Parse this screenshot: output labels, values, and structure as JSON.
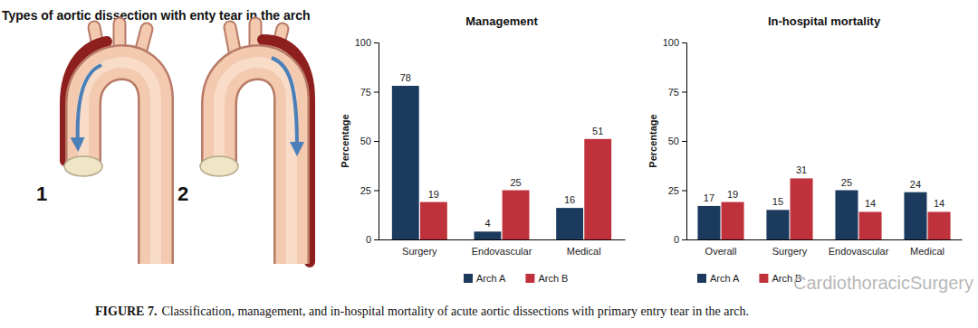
{
  "figure": {
    "illustration_title": "Types of aortic dissection with enty tear in the arch",
    "illustration_labels": [
      "1",
      "2"
    ],
    "caption_label": "FIGURE 7.",
    "caption_text": "Classification, management, and in-hospital mortality of acute aortic dissections with primary entry tear in the arch.",
    "watermark": "CardiothoracicSurgery"
  },
  "chart_data": [
    {
      "type": "bar",
      "title": "Management",
      "y_label": "Percentage",
      "categories": [
        "Surgery",
        "Endovascular",
        "Medical"
      ],
      "series": [
        {
          "name": "Arch A",
          "color": "#1b3a5e",
          "values": [
            78,
            4,
            16
          ]
        },
        {
          "name": "Arch B",
          "color": "#c0323b",
          "values": [
            19,
            25,
            51
          ]
        }
      ],
      "ylim": [
        0,
        100
      ],
      "yticks": [
        0,
        25,
        50,
        75,
        100
      ],
      "grid": false,
      "legend": "bottom",
      "data_labels": true
    },
    {
      "type": "bar",
      "title": "In-hospital mortality",
      "y_label": "Percentage",
      "categories": [
        "Overall",
        "Surgery",
        "Endovascular",
        "Medical"
      ],
      "series": [
        {
          "name": "Arch A",
          "color": "#1b3a5e",
          "values": [
            17,
            15,
            25,
            24
          ]
        },
        {
          "name": "Arch B",
          "color": "#c0323b",
          "values": [
            19,
            31,
            14,
            14
          ]
        }
      ],
      "ylim": [
        0,
        100
      ],
      "yticks": [
        0,
        25,
        50,
        75,
        100
      ],
      "grid": false,
      "legend": "bottom",
      "data_labels": true
    }
  ]
}
